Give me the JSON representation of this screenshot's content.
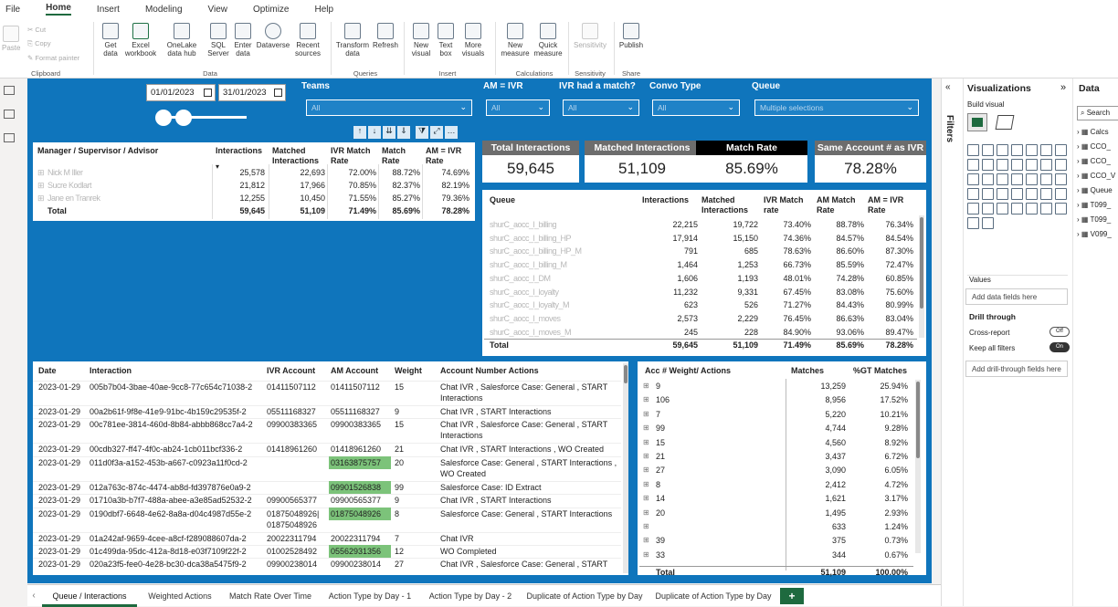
{
  "menubar": {
    "items": [
      "File",
      "Home",
      "Insert",
      "Modeling",
      "View",
      "Optimize",
      "Help"
    ]
  },
  "ribbon": {
    "clipboard": {
      "paste": "Paste",
      "cut": "Cut",
      "copy": "Copy",
      "format_painter": "Format painter",
      "group": "Clipboard"
    },
    "data": {
      "get_data": "Get data",
      "excel": "Excel workbook",
      "onelake": "OneLake data hub",
      "sql": "SQL Server",
      "enter": "Enter data",
      "dataverse": "Dataverse",
      "recent": "Recent sources",
      "group": "Data"
    },
    "queries": {
      "transform": "Transform data",
      "refresh": "Refresh",
      "group": "Queries"
    },
    "insert": {
      "new_visual": "New visual",
      "text_box": "Text box",
      "more_visuals": "More visuals",
      "group": "Insert"
    },
    "calculations": {
      "new_measure": "New measure",
      "quick_measure": "Quick measure",
      "group": "Calculations"
    },
    "sensitivity": {
      "label": "Sensitivity",
      "group": "Sensitivity"
    },
    "share": {
      "publish": "Publish",
      "group": "Share"
    }
  },
  "filters": {
    "date_from": "01/01/2023",
    "date_to": "31/01/2023",
    "teams_label": "Teams",
    "teams_value": "All",
    "am_ivr_label": "AM = IVR",
    "am_ivr_value": "All",
    "ivr_match_label": "IVR had a match?",
    "ivr_match_value": "All",
    "convo_label": "Convo Type",
    "convo_value": "All",
    "queue_label": "Queue",
    "queue_value": "Multiple selections"
  },
  "manager_table": {
    "headers": [
      "Manager / Supervisor / Advisor",
      "Interactions",
      "Matched Interactions",
      "IVR Match Rate",
      "Match Rate",
      "AM = IVR Rate"
    ],
    "rows": [
      [
        "Nick M Iller",
        "25,578",
        "22,693",
        "72.00%",
        "88.72%",
        "74.69%"
      ],
      [
        "Sucre Kodlart",
        "21,812",
        "17,966",
        "70.85%",
        "82.37%",
        "82.19%"
      ],
      [
        "Jane en Tranrek",
        "12,255",
        "10,450",
        "71.55%",
        "85.27%",
        "79.36%"
      ]
    ],
    "total": [
      "Total",
      "59,645",
      "51,109",
      "71.49%",
      "85.69%",
      "78.28%"
    ]
  },
  "cards": [
    {
      "title": "Total Interactions",
      "value": "59,645"
    },
    {
      "title": "Matched Interactions",
      "value": "51,109"
    },
    {
      "title": "Match Rate",
      "value": "85.69%"
    },
    {
      "title": "Same Account # as IVR",
      "value": "78.28%"
    }
  ],
  "queue_table": {
    "headers": [
      "Queue",
      "Interactions",
      "Matched Interactions",
      "IVR Match rate",
      "AM Match Rate",
      "AM = IVR Rate"
    ],
    "rows": [
      [
        "shurC_aocc_l_billing",
        "22,215",
        "19,722",
        "73.40%",
        "88.78%",
        "76.34%"
      ],
      [
        "shurC_aocc_l_billing_HP",
        "17,914",
        "15,150",
        "74.36%",
        "84.57%",
        "84.54%"
      ],
      [
        "shurC_aocc_l_billing_HP_M",
        "791",
        "685",
        "78.63%",
        "86.60%",
        "87.30%"
      ],
      [
        "shurC_aocc_l_billing_M",
        "1,464",
        "1,253",
        "66.73%",
        "85.59%",
        "72.47%"
      ],
      [
        "shurC_aocc_l_DM",
        "1,606",
        "1,193",
        "48.01%",
        "74.28%",
        "60.85%"
      ],
      [
        "shurC_aocc_l_loyalty",
        "11,232",
        "9,331",
        "67.45%",
        "83.08%",
        "75.60%"
      ],
      [
        "shurC_aocc_l_loyalty_M",
        "623",
        "526",
        "71.27%",
        "84.43%",
        "80.99%"
      ],
      [
        "shurC_aocc_l_moves",
        "2,573",
        "2,229",
        "76.45%",
        "86.63%",
        "83.04%"
      ],
      [
        "shurC_aocc_l_moves_M",
        "245",
        "228",
        "84.90%",
        "93.06%",
        "89.47%"
      ]
    ],
    "total": [
      "Total",
      "59,645",
      "51,109",
      "71.49%",
      "85.69%",
      "78.28%"
    ]
  },
  "detail_table": {
    "headers": [
      "Date",
      "Interaction",
      "IVR Account",
      "AM Account",
      "Weight",
      "Account Number Actions"
    ],
    "rows": [
      {
        "date": "2023-01-29",
        "interaction": "005b7b04-3bae-40ae-9cc8-77c654c71038-2",
        "ivr": "01411507112",
        "am": "01411507112",
        "weight": "15",
        "actions": "Chat IVR , Salesforce Case: General , START",
        "actions2": "Interactions",
        "green": false
      },
      {
        "date": "2023-01-29",
        "interaction": "00a2b61f-9f8e-41e9-91bc-4b159c29535f-2",
        "ivr": "05511168327",
        "am": "05511168327",
        "weight": "9",
        "actions": "Chat IVR , START Interactions",
        "actions2": "",
        "green": false
      },
      {
        "date": "2023-01-29",
        "interaction": "00c781ee-3814-460d-8b84-abbb868cc7a4-2",
        "ivr": "09900383365",
        "am": "09900383365",
        "weight": "15",
        "actions": "Chat IVR , Salesforce Case: General , START",
        "actions2": "Interactions",
        "green": false
      },
      {
        "date": "2023-01-29",
        "interaction": "00cdb327-ff47-4f0c-ab24-1cb011bcf336-2",
        "ivr": "01418961260",
        "am": "01418961260",
        "weight": "21",
        "actions": "Chat IVR , START Interactions , WO Created",
        "actions2": "",
        "green": false
      },
      {
        "date": "2023-01-29",
        "interaction": "011d0f3a-a152-453b-a667-c0923a11f0cd-2",
        "ivr": "",
        "am": "03163875757",
        "weight": "20",
        "actions": "Salesforce Case: General , START Interactions ,",
        "actions2": "WO Created",
        "green": true
      },
      {
        "date": "2023-01-29",
        "interaction": "012a763c-874c-4474-ab8d-fd397876e0a9-2",
        "ivr": "",
        "am": "09901526838",
        "weight": "99",
        "actions": "Salesforce Case: ID Extract",
        "actions2": "",
        "green": true
      },
      {
        "date": "2023-01-29",
        "interaction": "01710a3b-b7f7-488a-abee-a3e85ad52532-2",
        "ivr": "09900565377",
        "am": "09900565377",
        "weight": "9",
        "actions": "Chat IVR , START Interactions",
        "actions2": "",
        "green": false
      },
      {
        "date": "2023-01-29",
        "interaction": "0190dbf7-6648-4e62-8a8a-d04c4987d55e-2",
        "ivr": "01875048926|",
        "ivr2": "01875048926",
        "am": "01875048926",
        "weight": "8",
        "actions": "Salesforce Case: General , START Interactions",
        "actions2": "",
        "green": true
      },
      {
        "date": "2023-01-29",
        "interaction": "01a242af-9659-4cee-a8cf-f289088607da-2",
        "ivr": "20022311794",
        "am": "20022311794",
        "weight": "7",
        "actions": "Chat IVR",
        "actions2": "",
        "green": false
      },
      {
        "date": "2023-01-29",
        "interaction": "01c499da-95dc-412a-8d18-e03f7109f22f-2",
        "ivr": "01002528492",
        "am": "05562931356",
        "weight": "12",
        "actions": "WO Completed",
        "actions2": "",
        "green": true
      },
      {
        "date": "2023-01-29",
        "interaction": "020a23f5-fee0-4e28-bc30-dca38a5475f9-2",
        "ivr": "09900238014",
        "am": "09900238014",
        "weight": "27",
        "actions": "Chat IVR , Salesforce Case: General , START",
        "actions2": "",
        "green": false
      }
    ]
  },
  "weight_table": {
    "headers": [
      "Acc # Weight/ Actions",
      "Matches",
      "%GT Matches"
    ],
    "rows": [
      [
        "9",
        "13,259",
        "25.94%"
      ],
      [
        "106",
        "8,956",
        "17.52%"
      ],
      [
        "7",
        "5,220",
        "10.21%"
      ],
      [
        "99",
        "4,744",
        "9.28%"
      ],
      [
        "15",
        "4,560",
        "8.92%"
      ],
      [
        "21",
        "3,437",
        "6.72%"
      ],
      [
        "27",
        "3,090",
        "6.05%"
      ],
      [
        "8",
        "2,412",
        "4.72%"
      ],
      [
        "14",
        "1,621",
        "3.17%"
      ],
      [
        "20",
        "1,495",
        "2.93%"
      ],
      [
        "",
        "633",
        "1.24%"
      ],
      [
        "39",
        "375",
        "0.73%"
      ],
      [
        "33",
        "344",
        "0.67%"
      ]
    ],
    "total": [
      "Total",
      "51,109",
      "100.00%"
    ]
  },
  "tabs": [
    "Queue / Interactions",
    "Weighted Actions",
    "Match Rate Over Time",
    "Action Type by Day - 1",
    "Action Type by Day - 2",
    "Duplicate of Action Type by Day",
    "Duplicate of Action Type by Day",
    "+"
  ],
  "side": {
    "filters": "Filters"
  },
  "viz": {
    "title": "Visualizations",
    "build": "Build visual",
    "values": "Values",
    "add_data": "Add data fields here",
    "drill": "Drill through",
    "cross": "Cross-report",
    "cross_state": "Off",
    "keep": "Keep all filters",
    "keep_state": "On",
    "add_drill": "Add drill-through fields here"
  },
  "datapane": {
    "title": "Data",
    "search": "Search",
    "items": [
      "Calcs",
      "CCO_",
      "CCO_",
      "CCO_V",
      "Queue",
      "T099_",
      "T099_",
      "V099_"
    ]
  }
}
